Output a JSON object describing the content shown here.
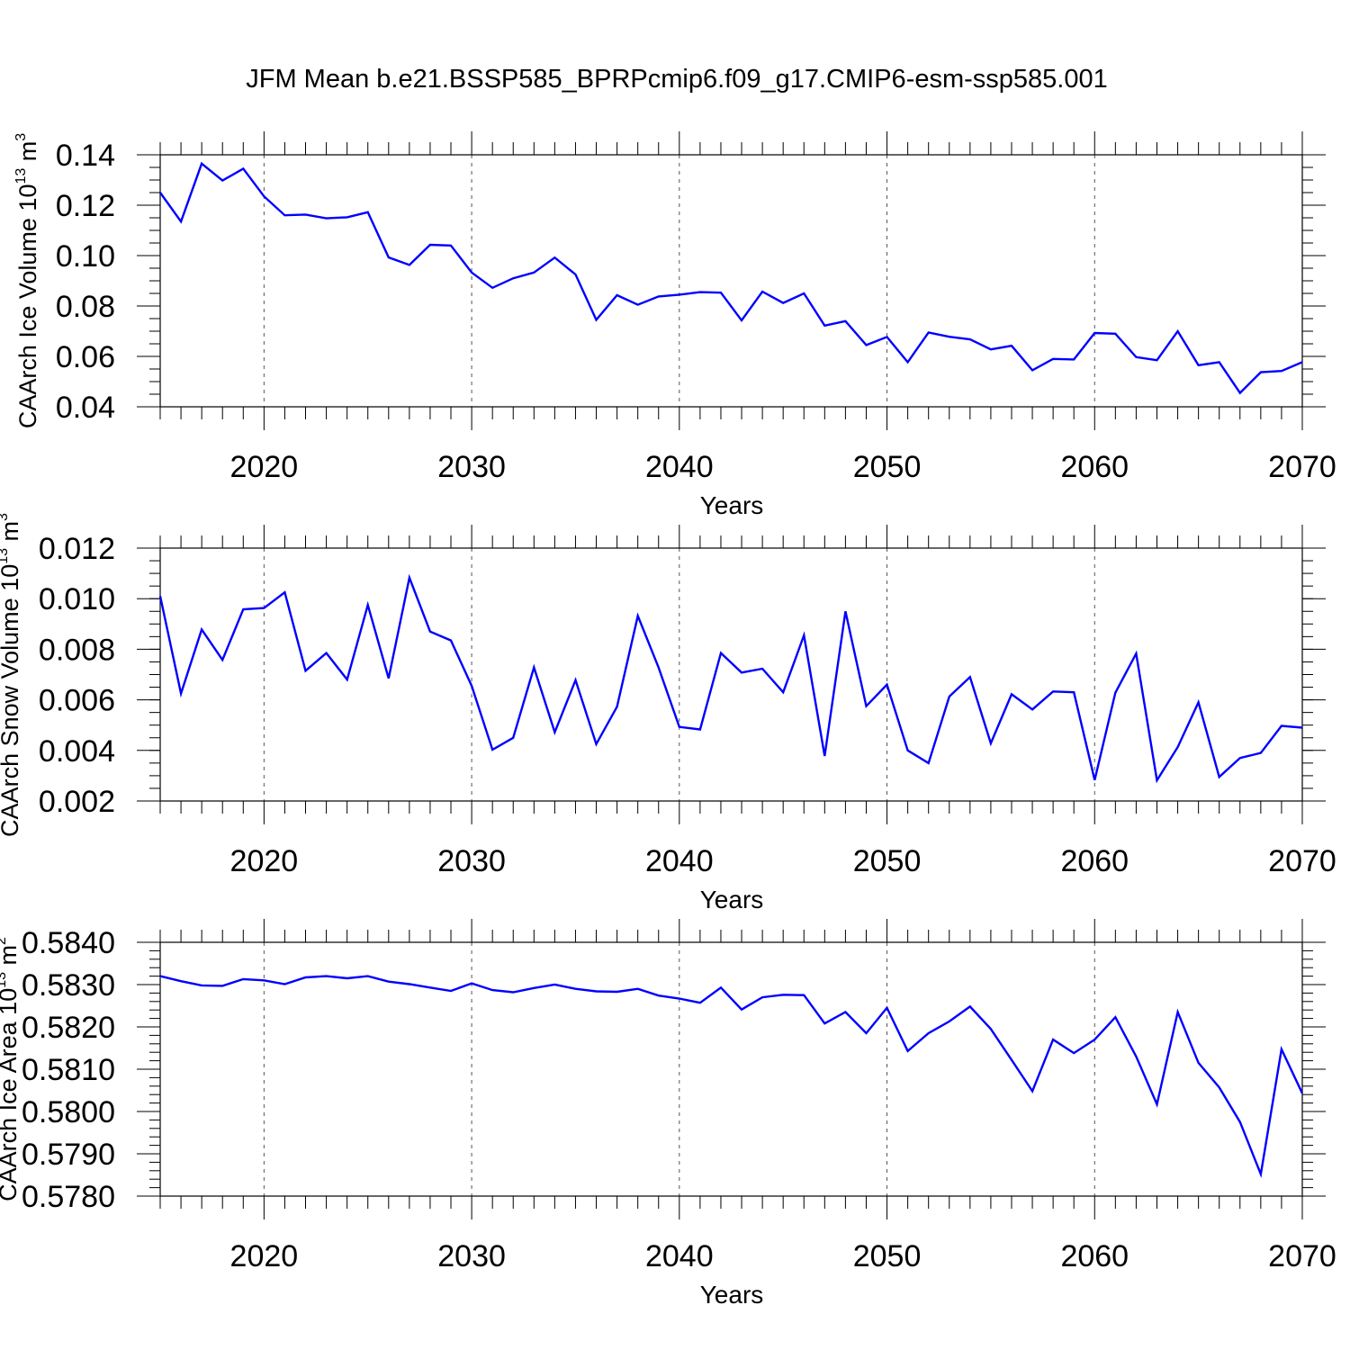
{
  "title": "JFM Mean b.e21.BSSP585_BPRPcmip6.f09_g17.CMIP6-esm-ssp585.001",
  "line_color": "#0000ff",
  "chart_data": [
    {
      "type": "line",
      "xlabel": "Years",
      "ylabel": "CAArch Ice Volume 10",
      "ylabel_exp": "13",
      "ylabel_unit": " m",
      "ylabel_unit_exp": "3",
      "xlim": [
        2015,
        2070
      ],
      "ylim": [
        0.04,
        0.14
      ],
      "xticks": [
        2020,
        2030,
        2040,
        2050,
        2060,
        2070
      ],
      "xtick_labels": [
        "2020",
        "2030",
        "2040",
        "2050",
        "2060",
        "2070"
      ],
      "yticks": [
        0.04,
        0.06,
        0.08,
        0.1,
        0.12,
        0.14
      ],
      "ytick_labels": [
        "0.04",
        "0.06",
        "0.08",
        "0.10",
        "0.12",
        "0.14"
      ],
      "y_minor_step": 0.005,
      "x_start": 2015,
      "values": [
        0.125,
        0.1135,
        0.1365,
        0.1298,
        0.1345,
        0.1235,
        0.116,
        0.1163,
        0.1148,
        0.1152,
        0.1172,
        0.0993,
        0.0963,
        0.1043,
        0.104,
        0.0933,
        0.0872,
        0.091,
        0.0933,
        0.0992,
        0.0925,
        0.0745,
        0.0843,
        0.0805,
        0.0838,
        0.0845,
        0.0855,
        0.0853,
        0.0743,
        0.0857,
        0.0812,
        0.085,
        0.0722,
        0.074,
        0.0645,
        0.0677,
        0.0577,
        0.0695,
        0.0678,
        0.0668,
        0.0628,
        0.0642,
        0.0545,
        0.059,
        0.0588,
        0.0693,
        0.069,
        0.0597,
        0.0585,
        0.07,
        0.0565,
        0.0577,
        0.0455,
        0.0537,
        0.0542,
        0.0577
      ]
    },
    {
      "type": "line",
      "xlabel": "Years",
      "ylabel": "CAArch Snow Volume 10",
      "ylabel_exp": "13",
      "ylabel_unit": " m",
      "ylabel_unit_exp": "3",
      "xlim": [
        2015,
        2070
      ],
      "ylim": [
        0.002,
        0.012
      ],
      "xticks": [
        2020,
        2030,
        2040,
        2050,
        2060,
        2070
      ],
      "xtick_labels": [
        "2020",
        "2030",
        "2040",
        "2050",
        "2060",
        "2070"
      ],
      "yticks": [
        0.002,
        0.004,
        0.006,
        0.008,
        0.01,
        0.012
      ],
      "ytick_labels": [
        "0.002",
        "0.004",
        "0.006",
        "0.008",
        "0.010",
        "0.012"
      ],
      "y_minor_step": 0.0005,
      "x_start": 2015,
      "values": [
        0.0101,
        0.00625,
        0.00878,
        0.00758,
        0.00958,
        0.00963,
        0.01025,
        0.00715,
        0.00785,
        0.0068,
        0.00975,
        0.00685,
        0.01083,
        0.0087,
        0.00835,
        0.00655,
        0.00403,
        0.0045,
        0.00728,
        0.00472,
        0.00678,
        0.00425,
        0.00573,
        0.00932,
        0.00728,
        0.00493,
        0.00483,
        0.00785,
        0.00708,
        0.00723,
        0.0063,
        0.00855,
        0.00378,
        0.0095,
        0.00575,
        0.0066,
        0.004,
        0.0035,
        0.00613,
        0.0069,
        0.00428,
        0.00622,
        0.00562,
        0.00633,
        0.0063,
        0.00283,
        0.00628,
        0.00783,
        0.00282,
        0.00413,
        0.0059,
        0.00295,
        0.0037,
        0.0039,
        0.00497,
        0.0049
      ]
    },
    {
      "type": "line",
      "xlabel": "Years",
      "ylabel": "CAArch Ice Area 10",
      "ylabel_exp": "13",
      "ylabel_unit": " m",
      "ylabel_unit_exp": "2",
      "xlim": [
        2015,
        2070
      ],
      "ylim": [
        0.578,
        0.584
      ],
      "xticks": [
        2020,
        2030,
        2040,
        2050,
        2060,
        2070
      ],
      "xtick_labels": [
        "2020",
        "2030",
        "2040",
        "2050",
        "2060",
        "2070"
      ],
      "yticks": [
        0.578,
        0.579,
        0.58,
        0.581,
        0.582,
        0.583,
        0.584
      ],
      "ytick_labels": [
        "0.5780",
        "0.5790",
        "0.5800",
        "0.5810",
        "0.5820",
        "0.5830",
        "0.5840"
      ],
      "y_minor_step": 0.0002,
      "x_start": 2015,
      "values": [
        0.5832,
        0.58308,
        0.58298,
        0.58297,
        0.58313,
        0.5831,
        0.58301,
        0.58317,
        0.5832,
        0.58315,
        0.5832,
        0.58307,
        0.58301,
        0.58293,
        0.58285,
        0.58303,
        0.58287,
        0.58282,
        0.58292,
        0.583,
        0.5829,
        0.58284,
        0.58283,
        0.5829,
        0.58274,
        0.58267,
        0.58257,
        0.58293,
        0.58241,
        0.5827,
        0.58276,
        0.58275,
        0.58208,
        0.58235,
        0.58185,
        0.58245,
        0.58143,
        0.58185,
        0.58213,
        0.58248,
        0.58195,
        0.58122,
        0.58048,
        0.5817,
        0.58138,
        0.5817,
        0.58223,
        0.5813,
        0.58017,
        0.58235,
        0.58115,
        0.58057,
        0.57975,
        0.57852,
        0.58147,
        0.58043
      ]
    }
  ]
}
